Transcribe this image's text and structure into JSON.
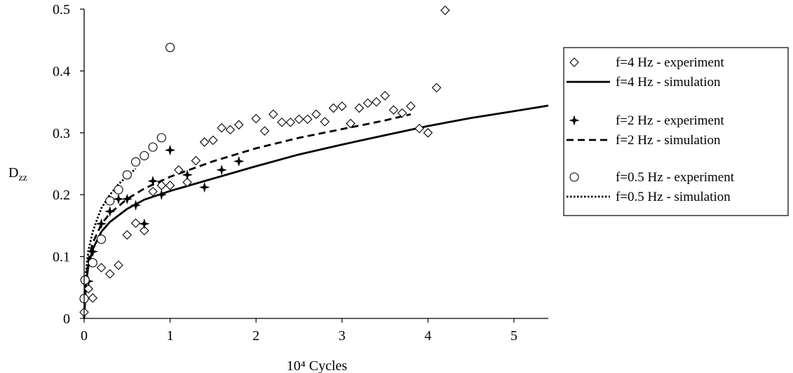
{
  "chart_data": {
    "type": "scatter",
    "title": "",
    "xlabel": "10⁴ Cycles",
    "ylabel": "D_zz",
    "ylabel_main": "D",
    "ylabel_sub": "zz",
    "xlim": [
      0,
      5.4
    ],
    "ylim": [
      0,
      0.5
    ],
    "xticks": [
      0,
      1,
      2,
      3,
      4,
      5
    ],
    "yticks": [
      0,
      0.1,
      0.2,
      0.3,
      0.4,
      0.5
    ],
    "xtick_labels": [
      "0",
      "1",
      "2",
      "3",
      "4",
      "5"
    ],
    "ytick_labels": [
      "0",
      "0.1",
      "0.2",
      "0.3",
      "0.4",
      "0.5"
    ],
    "grid": false,
    "legend_position": "right",
    "series": [
      {
        "name": "f=4 Hz - experiment",
        "kind": "scatter",
        "marker": "diamond",
        "points": [
          [
            0.0,
            0.01
          ],
          [
            0.05,
            0.048
          ],
          [
            0.1,
            0.033
          ],
          [
            0.2,
            0.082
          ],
          [
            0.3,
            0.072
          ],
          [
            0.4,
            0.086
          ],
          [
            0.5,
            0.135
          ],
          [
            0.6,
            0.154
          ],
          [
            0.7,
            0.142
          ],
          [
            0.8,
            0.205
          ],
          [
            0.9,
            0.215
          ],
          [
            1.0,
            0.215
          ],
          [
            1.1,
            0.24
          ],
          [
            1.2,
            0.22
          ],
          [
            1.3,
            0.255
          ],
          [
            1.4,
            0.285
          ],
          [
            1.5,
            0.288
          ],
          [
            1.6,
            0.308
          ],
          [
            1.7,
            0.305
          ],
          [
            1.8,
            0.313
          ],
          [
            2.0,
            0.323
          ],
          [
            2.1,
            0.303
          ],
          [
            2.2,
            0.33
          ],
          [
            2.3,
            0.317
          ],
          [
            2.4,
            0.317
          ],
          [
            2.5,
            0.322
          ],
          [
            2.6,
            0.322
          ],
          [
            2.7,
            0.33
          ],
          [
            2.8,
            0.318
          ],
          [
            2.9,
            0.34
          ],
          [
            3.0,
            0.343
          ],
          [
            3.1,
            0.315
          ],
          [
            3.2,
            0.34
          ],
          [
            3.3,
            0.348
          ],
          [
            3.4,
            0.35
          ],
          [
            3.5,
            0.36
          ],
          [
            3.6,
            0.337
          ],
          [
            3.7,
            0.332
          ],
          [
            3.8,
            0.343
          ],
          [
            3.9,
            0.307
          ],
          [
            4.0,
            0.3
          ],
          [
            4.1,
            0.373
          ],
          [
            4.2,
            0.498
          ]
        ]
      },
      {
        "name": "f=4 Hz - simulation",
        "kind": "line",
        "dash": "solid",
        "points": [
          [
            0,
            0
          ],
          [
            0.02,
            0.055
          ],
          [
            0.05,
            0.085
          ],
          [
            0.1,
            0.112
          ],
          [
            0.2,
            0.14
          ],
          [
            0.3,
            0.156
          ],
          [
            0.5,
            0.177
          ],
          [
            0.7,
            0.192
          ],
          [
            1.0,
            0.206
          ],
          [
            1.5,
            0.226
          ],
          [
            2.0,
            0.246
          ],
          [
            2.5,
            0.265
          ],
          [
            3.0,
            0.281
          ],
          [
            3.5,
            0.296
          ],
          [
            4.0,
            0.311
          ],
          [
            4.5,
            0.324
          ],
          [
            5.0,
            0.335
          ],
          [
            5.4,
            0.344
          ]
        ]
      },
      {
        "name": "f=2 Hz - experiment",
        "kind": "scatter",
        "marker": "star4",
        "points": [
          [
            0.05,
            0.06
          ],
          [
            0.1,
            0.108
          ],
          [
            0.2,
            0.153
          ],
          [
            0.3,
            0.173
          ],
          [
            0.4,
            0.193
          ],
          [
            0.5,
            0.193
          ],
          [
            0.6,
            0.183
          ],
          [
            0.7,
            0.153
          ],
          [
            0.8,
            0.222
          ],
          [
            0.9,
            0.2
          ],
          [
            1.0,
            0.272
          ],
          [
            1.2,
            0.232
          ],
          [
            1.4,
            0.212
          ],
          [
            1.6,
            0.24
          ],
          [
            1.8,
            0.254
          ]
        ]
      },
      {
        "name": "f=2 Hz - simulation",
        "kind": "line",
        "dash": "dashed",
        "points": [
          [
            0,
            0
          ],
          [
            0.02,
            0.06
          ],
          [
            0.05,
            0.095
          ],
          [
            0.1,
            0.122
          ],
          [
            0.2,
            0.152
          ],
          [
            0.3,
            0.17
          ],
          [
            0.5,
            0.193
          ],
          [
            0.7,
            0.21
          ],
          [
            1.0,
            0.229
          ],
          [
            1.5,
            0.254
          ],
          [
            2.0,
            0.275
          ],
          [
            2.5,
            0.292
          ],
          [
            3.0,
            0.306
          ],
          [
            3.5,
            0.32
          ],
          [
            3.8,
            0.33
          ]
        ]
      },
      {
        "name": "f=0.5 Hz - experiment",
        "kind": "scatter",
        "marker": "circle",
        "points": [
          [
            0.0,
            0.032
          ],
          [
            0.01,
            0.062
          ],
          [
            0.1,
            0.09
          ],
          [
            0.2,
            0.128
          ],
          [
            0.3,
            0.19
          ],
          [
            0.4,
            0.208
          ],
          [
            0.5,
            0.232
          ],
          [
            0.6,
            0.253
          ],
          [
            0.7,
            0.263
          ],
          [
            0.8,
            0.277
          ],
          [
            0.9,
            0.292
          ],
          [
            1.0,
            0.438
          ]
        ]
      },
      {
        "name": "f=0.5 Hz - simulation",
        "kind": "line",
        "dash": "dotted",
        "points": [
          [
            0,
            0
          ],
          [
            0.02,
            0.075
          ],
          [
            0.05,
            0.11
          ],
          [
            0.1,
            0.14
          ],
          [
            0.15,
            0.16
          ],
          [
            0.2,
            0.178
          ],
          [
            0.3,
            0.2
          ],
          [
            0.4,
            0.217
          ],
          [
            0.5,
            0.23
          ],
          [
            0.6,
            0.242
          ]
        ]
      }
    ]
  }
}
